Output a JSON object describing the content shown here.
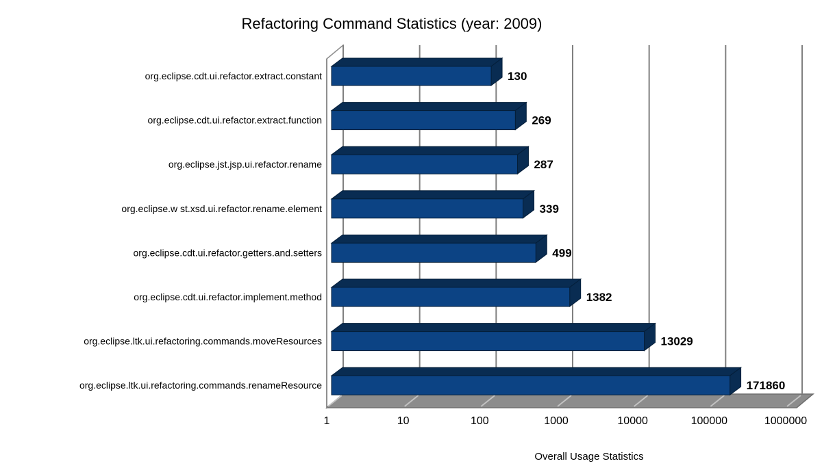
{
  "chart_data": {
    "type": "bar",
    "orientation": "horizontal",
    "title": "Refactoring Command Statistics (year: 2009)",
    "xlabel": "Overall Usage Statistics",
    "x_scale": "log",
    "xlim": [
      1,
      1000000
    ],
    "x_ticks": [
      "1",
      "10",
      "100",
      "1000",
      "10000",
      "100000",
      "1000000"
    ],
    "categories": [
      "org.eclipse.cdt.ui.refactor.extract.constant",
      "org.eclipse.cdt.ui.refactor.extract.function",
      "org.eclipse.jst.jsp.ui.refactor.rename",
      "org.eclipse.w st.xsd.ui.refactor.rename.element",
      "org.eclipse.cdt.ui.refactor.getters.and.setters",
      "org.eclipse.cdt.ui.refactor.implement.method",
      "org.eclipse.ltk.ui.refactoring.commands.moveResources",
      "org.eclipse.ltk.ui.refactoring.commands.renameResource"
    ],
    "values": [
      130,
      269,
      287,
      339,
      499,
      1382,
      13029,
      171860
    ],
    "value_labels": [
      "130",
      "269",
      "287",
      "339",
      "499",
      "1382",
      "13029",
      "171860"
    ],
    "grid": true,
    "legend": "none",
    "style_3d": true,
    "colors": {
      "bar_front": "#0C4384",
      "bar_dark": "#092C52",
      "bar_outline": "#041E39",
      "floor": "#8C8C8C",
      "floor_edge": "#6E6E6E",
      "floor_hatch": "#C2C2C2",
      "gridline": "#808080",
      "wall_line": "#8F8F8F",
      "text": "#000000",
      "background": "#FFFFFF"
    }
  }
}
